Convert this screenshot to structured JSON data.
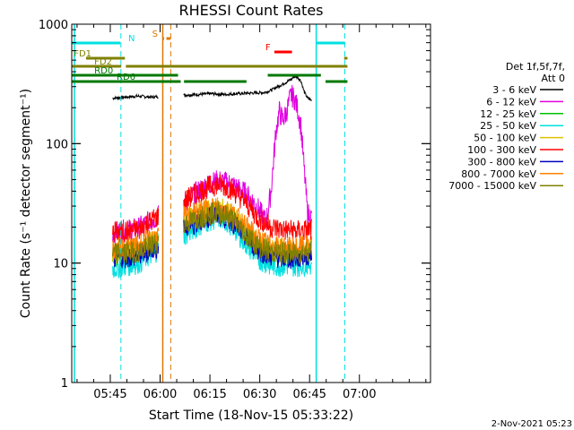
{
  "chart_data": {
    "type": "line",
    "title": "RHESSI Count Rates",
    "xlabel": "Start Time (18-Nov-15 05:33:22)",
    "ylabel": "Count Rate (s⁻¹ detector segment⁻¹)",
    "y_scale": "log",
    "ylim": [
      1,
      1000
    ],
    "xlim_minutes": [
      0,
      108
    ],
    "x_ticks": [
      {
        "label": "05:45",
        "t": 11.6
      },
      {
        "label": "06:00",
        "t": 26.6
      },
      {
        "label": "06:15",
        "t": 41.6
      },
      {
        "label": "06:30",
        "t": 56.6
      },
      {
        "label": "06:45",
        "t": 71.6
      },
      {
        "label": "07:00",
        "t": 86.6
      }
    ],
    "y_ticks": [
      {
        "label": "1",
        "v": 1
      },
      {
        "label": "10",
        "v": 10
      },
      {
        "label": "100",
        "v": 100
      },
      {
        "label": "1000",
        "v": 1000
      }
    ],
    "legend": {
      "header": [
        "Det 1f,5f,7f,",
        "Att 0"
      ],
      "position": "right",
      "entries": [
        {
          "label": "3 - 6 keV",
          "color": "#000000"
        },
        {
          "label": "6 - 12 keV",
          "color": "#e000e0"
        },
        {
          "label": "12 - 25 keV",
          "color": "#00c000"
        },
        {
          "label": "25 - 50 keV",
          "color": "#00e0e0"
        },
        {
          "label": "50 - 100 keV",
          "color": "#e0c000"
        },
        {
          "label": "100 - 300 keV",
          "color": "#ff0000"
        },
        {
          "label": "300 - 800 keV",
          "color": "#0000c0"
        },
        {
          "label": "800 - 7000 keV",
          "color": "#ff8000"
        },
        {
          "label": "7000 - 15000 keV",
          "color": "#808000"
        }
      ]
    },
    "segments": [
      {
        "t0": 12.3,
        "t1": 26.2
      },
      {
        "t0": 33.7,
        "t1": 72.3
      }
    ],
    "series": [
      {
        "name": "3 - 6 keV",
        "color": "#000000",
        "points": [
          [
            12.3,
            240
          ],
          [
            16,
            245
          ],
          [
            20,
            250
          ],
          [
            24,
            245
          ],
          [
            26.2,
            248
          ],
          [
            33.7,
            255
          ],
          [
            38,
            258
          ],
          [
            42,
            262
          ],
          [
            46,
            258
          ],
          [
            50,
            262
          ],
          [
            54,
            265
          ],
          [
            58,
            268
          ],
          [
            60,
            280
          ],
          [
            62,
            300
          ],
          [
            64,
            320
          ],
          [
            66,
            345
          ],
          [
            67,
            365
          ],
          [
            68,
            360
          ],
          [
            69,
            335
          ],
          [
            70,
            270
          ],
          [
            71,
            240
          ],
          [
            72.3,
            230
          ]
        ]
      },
      {
        "name": "6 - 12 keV",
        "color": "#e000e0",
        "points": [
          [
            12.3,
            18
          ],
          [
            20,
            19.5
          ],
          [
            26.2,
            25
          ],
          [
            33.7,
            32
          ],
          [
            40,
            44
          ],
          [
            44,
            49
          ],
          [
            48,
            46
          ],
          [
            52,
            39
          ],
          [
            55,
            32
          ],
          [
            57,
            26
          ],
          [
            58.5,
            22
          ],
          [
            60,
            40
          ],
          [
            61.5,
            130
          ],
          [
            62.5,
            185
          ],
          [
            63.5,
            158
          ],
          [
            64.5,
            178
          ],
          [
            66,
            255
          ],
          [
            67,
            240
          ],
          [
            68,
            195
          ],
          [
            69,
            140
          ],
          [
            70,
            60
          ],
          [
            71,
            26
          ],
          [
            72.3,
            24
          ]
        ]
      },
      {
        "name": "12 - 25 keV",
        "color": "#00c000",
        "points": [
          [
            12.3,
            11
          ],
          [
            20,
            12
          ],
          [
            26.2,
            15
          ],
          [
            33.7,
            20
          ],
          [
            40,
            25
          ],
          [
            44,
            27
          ],
          [
            48,
            24
          ],
          [
            52,
            18
          ],
          [
            56,
            13
          ],
          [
            60,
            11.5
          ],
          [
            64,
            11.5
          ],
          [
            68,
            11.5
          ],
          [
            72.3,
            12
          ]
        ]
      },
      {
        "name": "25 - 50 keV",
        "color": "#00e0e0",
        "points": [
          [
            12.3,
            9
          ],
          [
            20,
            10
          ],
          [
            26.2,
            13
          ],
          [
            33.7,
            17
          ],
          [
            40,
            22
          ],
          [
            44,
            24
          ],
          [
            48,
            21
          ],
          [
            52,
            15
          ],
          [
            56,
            11
          ],
          [
            60,
            9.5
          ],
          [
            64,
            9.5
          ],
          [
            68,
            9.5
          ],
          [
            72.3,
            10
          ]
        ]
      },
      {
        "name": "50 - 100 keV",
        "color": "#e0c000",
        "points": [
          [
            12.3,
            12
          ],
          [
            20,
            13
          ],
          [
            26.2,
            16
          ],
          [
            33.7,
            22
          ],
          [
            40,
            27
          ],
          [
            44,
            29
          ],
          [
            48,
            26
          ],
          [
            52,
            19
          ],
          [
            56,
            14.5
          ],
          [
            60,
            13
          ],
          [
            64,
            13
          ],
          [
            68,
            13
          ],
          [
            72.3,
            14
          ]
        ]
      },
      {
        "name": "100 - 300 keV",
        "color": "#ff0000",
        "points": [
          [
            12.3,
            18
          ],
          [
            20,
            19
          ],
          [
            26.2,
            25
          ],
          [
            33.7,
            33
          ],
          [
            40,
            42
          ],
          [
            44,
            46
          ],
          [
            48,
            42
          ],
          [
            52,
            33
          ],
          [
            56,
            24
          ],
          [
            60,
            20
          ],
          [
            64,
            19
          ],
          [
            68,
            18.5
          ],
          [
            72.3,
            19
          ]
        ]
      },
      {
        "name": "300 - 800 keV",
        "color": "#0000c0",
        "points": [
          [
            12.3,
            11
          ],
          [
            20,
            11.5
          ],
          [
            26.2,
            14
          ],
          [
            33.7,
            19
          ],
          [
            40,
            24
          ],
          [
            44,
            25.5
          ],
          [
            48,
            23
          ],
          [
            52,
            17
          ],
          [
            56,
            13
          ],
          [
            60,
            11.5
          ],
          [
            64,
            11
          ],
          [
            68,
            11
          ],
          [
            72.3,
            12
          ]
        ]
      },
      {
        "name": "800 - 7000 keV",
        "color": "#ff8000",
        "points": [
          [
            12.3,
            13
          ],
          [
            20,
            14
          ],
          [
            26.2,
            17
          ],
          [
            33.7,
            24
          ],
          [
            40,
            28
          ],
          [
            44,
            29.5
          ],
          [
            48,
            27
          ],
          [
            52,
            21
          ],
          [
            56,
            16
          ],
          [
            60,
            14
          ],
          [
            64,
            13.5
          ],
          [
            68,
            13.5
          ],
          [
            72.3,
            14
          ]
        ]
      },
      {
        "name": "7000 - 15000 keV",
        "color": "#808000",
        "points": [
          [
            12.3,
            12
          ],
          [
            20,
            12.5
          ],
          [
            26.2,
            15
          ],
          [
            33.7,
            21
          ],
          [
            40,
            25
          ],
          [
            44,
            26.5
          ],
          [
            48,
            24
          ],
          [
            52,
            18
          ],
          [
            56,
            14
          ],
          [
            60,
            12.5
          ],
          [
            64,
            12
          ],
          [
            68,
            12
          ],
          [
            72.3,
            13
          ]
        ]
      }
    ],
    "vertical_markers": [
      {
        "t": 0.8,
        "color": "#00e0e0",
        "style": "solid"
      },
      {
        "t": 14.8,
        "color": "#00e0e0",
        "style": "dashed"
      },
      {
        "t": 27.4,
        "color": "#e07800",
        "style": "solid"
      },
      {
        "t": 29.8,
        "color": "#e07800",
        "style": "dashed"
      },
      {
        "t": 73.6,
        "color": "#00e0e0",
        "style": "solid"
      },
      {
        "t": 82.2,
        "color": "#00e0e0",
        "style": "dashed"
      }
    ],
    "flag_bars": [
      {
        "label": "N",
        "label_t": 17,
        "color": "#00e0e0",
        "row": 0,
        "ranges": [
          [
            0,
            14.6
          ],
          [
            73.6,
            82.2
          ]
        ]
      },
      {
        "label": "S",
        "label_t": 24.2,
        "color": "#e07800",
        "row": 1,
        "ranges": [
          [
            27.5,
            27.8
          ],
          [
            28.5,
            29.8
          ]
        ]
      },
      {
        "label": "F",
        "label_t": 58.3,
        "color": "#ff0000",
        "row": 2,
        "ranges": [
          [
            61,
            66.3
          ]
        ]
      },
      {
        "label": "FD1",
        "label_t": 0.6,
        "color": "#808000",
        "row": 3,
        "ranges": [
          [
            4.3,
            16
          ],
          [
            82,
            83
          ]
        ]
      },
      {
        "label": "FD2",
        "label_t": 6.8,
        "color": "#808000",
        "row": 4,
        "ranges": [
          [
            0,
            14.9
          ],
          [
            16.3,
            83
          ]
        ]
      },
      {
        "label": "RD0",
        "label_t": 6.8,
        "color": "#007800",
        "row": 5,
        "ranges": [
          [
            0,
            32
          ],
          [
            59,
            75
          ]
        ]
      },
      {
        "label": "RD6",
        "label_t": 13.5,
        "color": "#007800",
        "row": 6,
        "ranges": [
          [
            0,
            32.8
          ],
          [
            33.8,
            52.6
          ],
          [
            76.4,
            83
          ]
        ]
      }
    ],
    "footer_date": "2-Nov-2021 05:23"
  }
}
